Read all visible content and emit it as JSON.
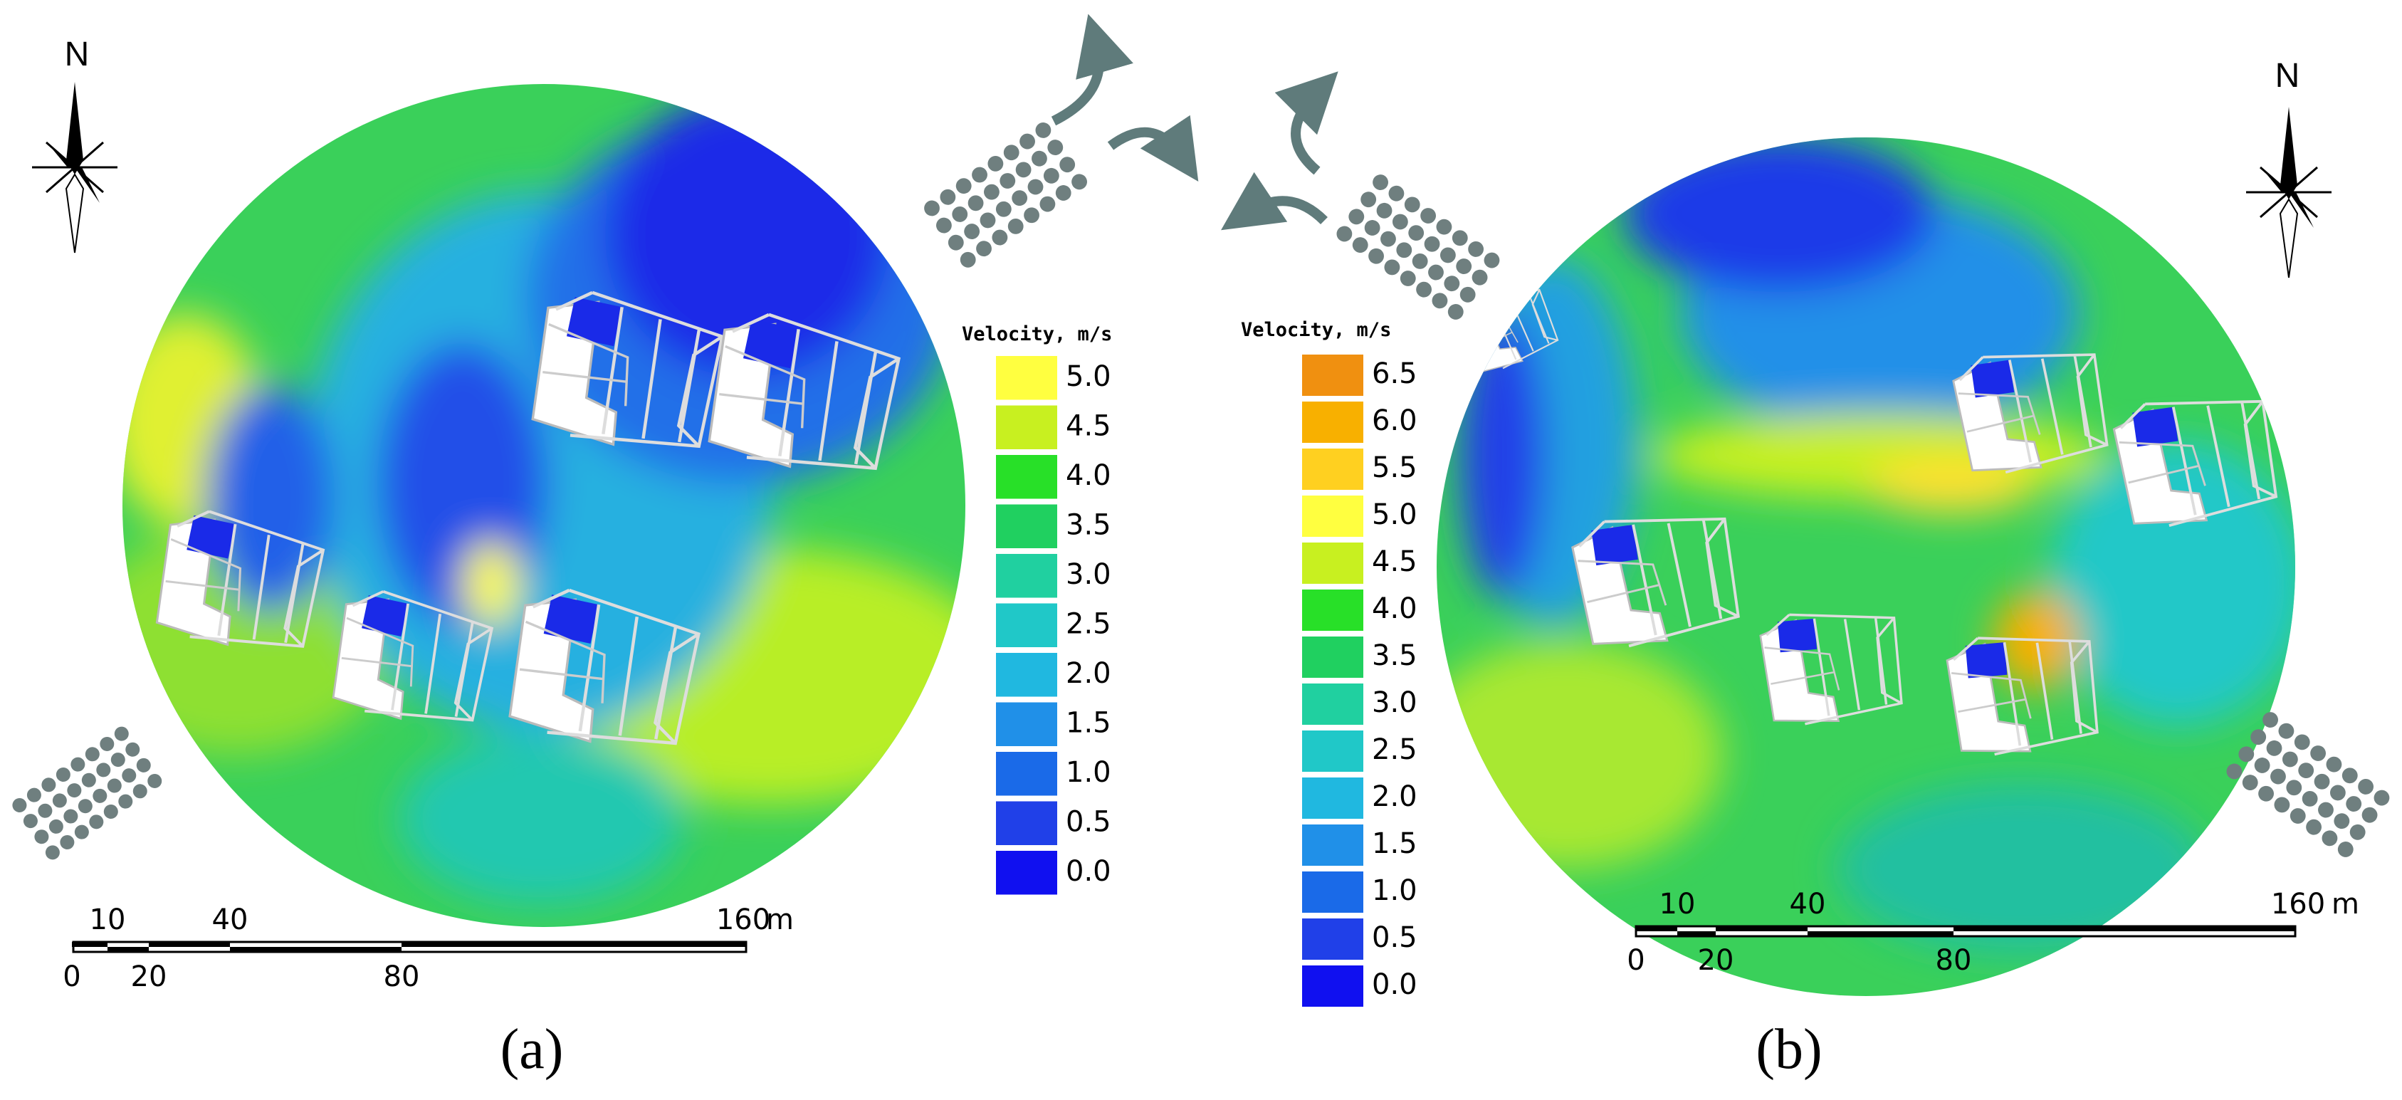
{
  "panels": [
    {
      "caption": "(a)",
      "compass": "N",
      "legend": {
        "title": "Velocity, m/s",
        "entries": [
          {
            "label": "5.0",
            "color": "#ffff40"
          },
          {
            "label": "4.5",
            "color": "#c8f020"
          },
          {
            "label": "4.0",
            "color": "#28e028"
          },
          {
            "label": "3.5",
            "color": "#20d060"
          },
          {
            "label": "3.0",
            "color": "#20d0a0"
          },
          {
            "label": "2.5",
            "color": "#20c8c8"
          },
          {
            "label": "2.0",
            "color": "#20b8e0"
          },
          {
            "label": "1.5",
            "color": "#2090e8"
          },
          {
            "label": "1.0",
            "color": "#1a6ae8"
          },
          {
            "label": "0.5",
            "color": "#2040e8"
          },
          {
            "label": "0.0",
            "color": "#1010f0"
          }
        ]
      },
      "scale_bar": {
        "top": [
          "10",
          "40",
          "160"
        ],
        "bottom": [
          "0",
          "20",
          "80"
        ],
        "unit": "m"
      }
    },
    {
      "caption": "(b)",
      "compass": "N",
      "legend": {
        "title": "Velocity, m/s",
        "entries": [
          {
            "label": "6.5",
            "color": "#f09010"
          },
          {
            "label": "6.0",
            "color": "#f8b000"
          },
          {
            "label": "5.5",
            "color": "#ffd020"
          },
          {
            "label": "5.0",
            "color": "#ffff40"
          },
          {
            "label": "4.5",
            "color": "#c8f020"
          },
          {
            "label": "4.0",
            "color": "#28e028"
          },
          {
            "label": "3.5",
            "color": "#20d060"
          },
          {
            "label": "3.0",
            "color": "#20d0a0"
          },
          {
            "label": "2.5",
            "color": "#20c8c8"
          },
          {
            "label": "2.0",
            "color": "#20b8e0"
          },
          {
            "label": "1.5",
            "color": "#2090e8"
          },
          {
            "label": "1.0",
            "color": "#1a6ae8"
          },
          {
            "label": "0.5",
            "color": "#2040e8"
          },
          {
            "label": "0.0",
            "color": "#1010f0"
          }
        ]
      },
      "scale_bar": {
        "top": [
          "10",
          "40",
          "160"
        ],
        "bottom": [
          "0",
          "20",
          "80"
        ],
        "unit": "m"
      }
    }
  ]
}
